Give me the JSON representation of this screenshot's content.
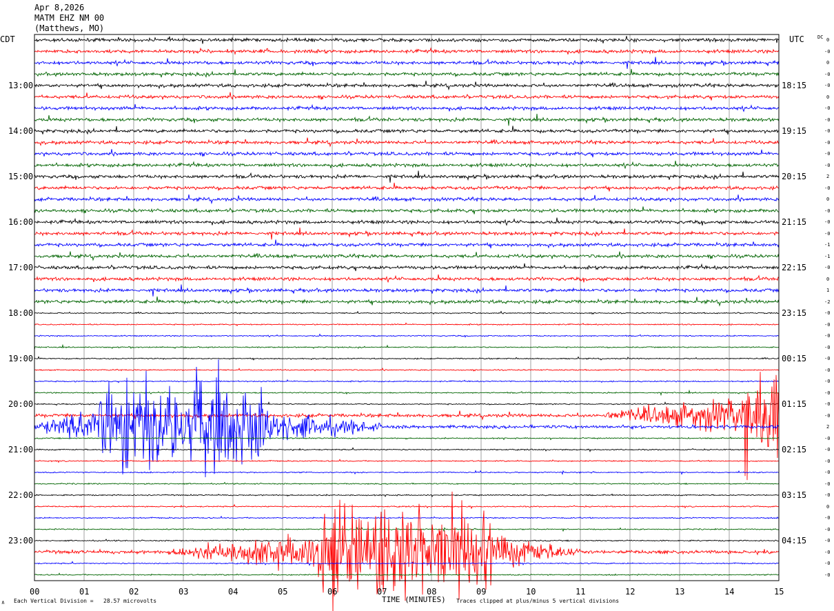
{
  "header": {
    "date": "Apr 8,2026",
    "station": "MATM EHZ NM 00",
    "location": "(Matthews, MO)"
  },
  "chart_data": {
    "type": "line",
    "title": "",
    "left_axis_label": "CDT",
    "right_axis_label": "UTC",
    "dc_label": "DC",
    "xlabel": "TIME (MINUTES)",
    "xlim": [
      0,
      15
    ],
    "x_ticks": [
      "00",
      "01",
      "02",
      "03",
      "04",
      "05",
      "06",
      "07",
      "08",
      "09",
      "10",
      "11",
      "12",
      "13",
      "14",
      "15"
    ],
    "left_time_labels": [
      "13:00",
      "14:00",
      "15:00",
      "16:00",
      "17:00",
      "18:00",
      "19:00",
      "20:00",
      "21:00",
      "22:00",
      "23:00"
    ],
    "right_time_labels": [
      "18:15",
      "19:15",
      "20:15",
      "21:15",
      "22:15",
      "23:15",
      "00:15",
      "01:15",
      "02:15",
      "03:15",
      "04:15"
    ],
    "trace_count": 48,
    "trace_colors": [
      "#000000",
      "#ff0000",
      "#0000ff",
      "#006400"
    ],
    "dc_offsets": [
      "0",
      "-0",
      "0",
      "-0",
      "-0",
      "0",
      "-0",
      "-0",
      "-0",
      "-0",
      "-0",
      "-0",
      "2",
      "-0",
      "0",
      "-0",
      "-0",
      "-0",
      "-1",
      "-1",
      "-0",
      "0",
      "1",
      "-2",
      "-0",
      "-0",
      "-0",
      "-0",
      "-0",
      "-0",
      "-0",
      "-0",
      "-0",
      "-0",
      "2",
      "-0",
      "-0",
      "-0",
      "-0",
      "-0",
      "-0",
      "0",
      "-0",
      "-0",
      "-0",
      "-0",
      "-0",
      "-0"
    ],
    "scale_note": "Each Vertical Division =   28.57 microvolts",
    "clip_note": "Traces clipped at plus/minus 5 vertical divisions",
    "corner_mark": "∧",
    "events": [
      {
        "trace_row": 34,
        "start_min": 0,
        "peak_start_min": 1.3,
        "peak_end_min": 4.6,
        "end_min": 7.0,
        "color": "#0000ff",
        "note": "large event on 20:30 CDT row"
      },
      {
        "trace_row": 45,
        "start_min": 2.8,
        "peak_start_min": 5.7,
        "peak_end_min": 9.2,
        "end_min": 11.0,
        "color": "#ff0000",
        "note": "large event on 23:15 CDT row"
      },
      {
        "trace_row": 33,
        "start_min": 11.5,
        "peak_start_min": 14.3,
        "peak_end_min": 15.0,
        "end_min": 15.0,
        "color": "#ff0000",
        "note": "emergent signal at end of 20:15 CDT row"
      }
    ]
  }
}
